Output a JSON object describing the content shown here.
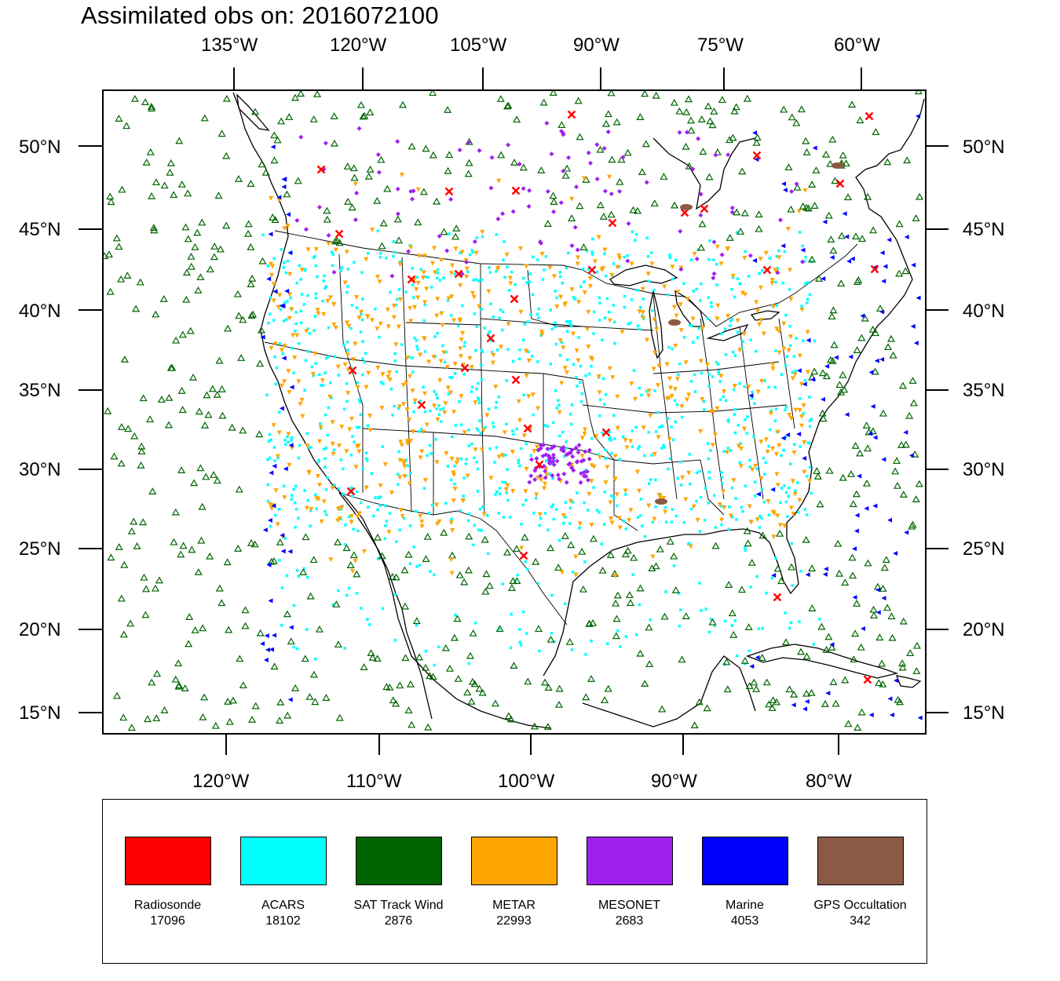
{
  "title": "Assimilated obs on: 2016072100",
  "axes": {
    "top_lon_labels": [
      "135°W",
      "120°W",
      "105°W",
      "90°W",
      "75°W",
      "60°W"
    ],
    "bottom_lon_labels": [
      "120°W",
      "110°W",
      "100°W",
      "90°W",
      "80°W"
    ],
    "lat_labels": [
      "50°N",
      "45°N",
      "40°N",
      "35°N",
      "30°N",
      "25°N",
      "20°N",
      "15°N"
    ]
  },
  "legend": [
    {
      "name": "Radiosonde",
      "count": "17096",
      "color": "#ff0000",
      "marker": "x-icon"
    },
    {
      "name": "ACARS",
      "count": "18102",
      "color": "#00ffff",
      "marker": "square-dot-icon"
    },
    {
      "name": "SAT Track Wind",
      "count": "2876",
      "color": "#006400",
      "marker": "triangle-up-icon"
    },
    {
      "name": "METAR",
      "count": "22993",
      "color": "#ffa500",
      "marker": "triangle-down-icon"
    },
    {
      "name": "MESONET",
      "count": "2683",
      "color": "#a020f0",
      "marker": "diamond-icon"
    },
    {
      "name": "Marine",
      "count": "4053",
      "color": "#0000ff",
      "marker": "triangle-left-icon"
    },
    {
      "name": "GPS Occultation",
      "count": "342",
      "color": "#8b5a44",
      "marker": "leaf-icon"
    }
  ]
}
